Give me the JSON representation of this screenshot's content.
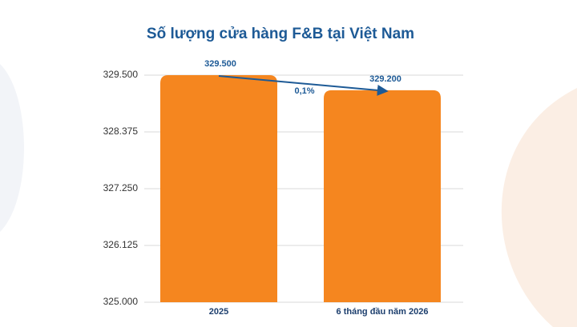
{
  "chart_data": {
    "type": "bar",
    "title": "Số lượng cửa hàng F&B tại Việt Nam",
    "categories": [
      "2025",
      "6 tháng đầu năm 2026"
    ],
    "values": [
      329500,
      329200
    ],
    "value_labels": [
      "329.500",
      "329.200"
    ],
    "color": "#f5861f",
    "ylim": [
      325000,
      329500
    ],
    "yticks": [
      {
        "value": 325000,
        "label": "325.000"
      },
      {
        "value": 326125,
        "label": "326.125"
      },
      {
        "value": 327250,
        "label": "327.250"
      },
      {
        "value": 328375,
        "label": "328.375"
      },
      {
        "value": 329500,
        "label": "329.500"
      }
    ],
    "grid": true,
    "annotation": "0,1%"
  }
}
